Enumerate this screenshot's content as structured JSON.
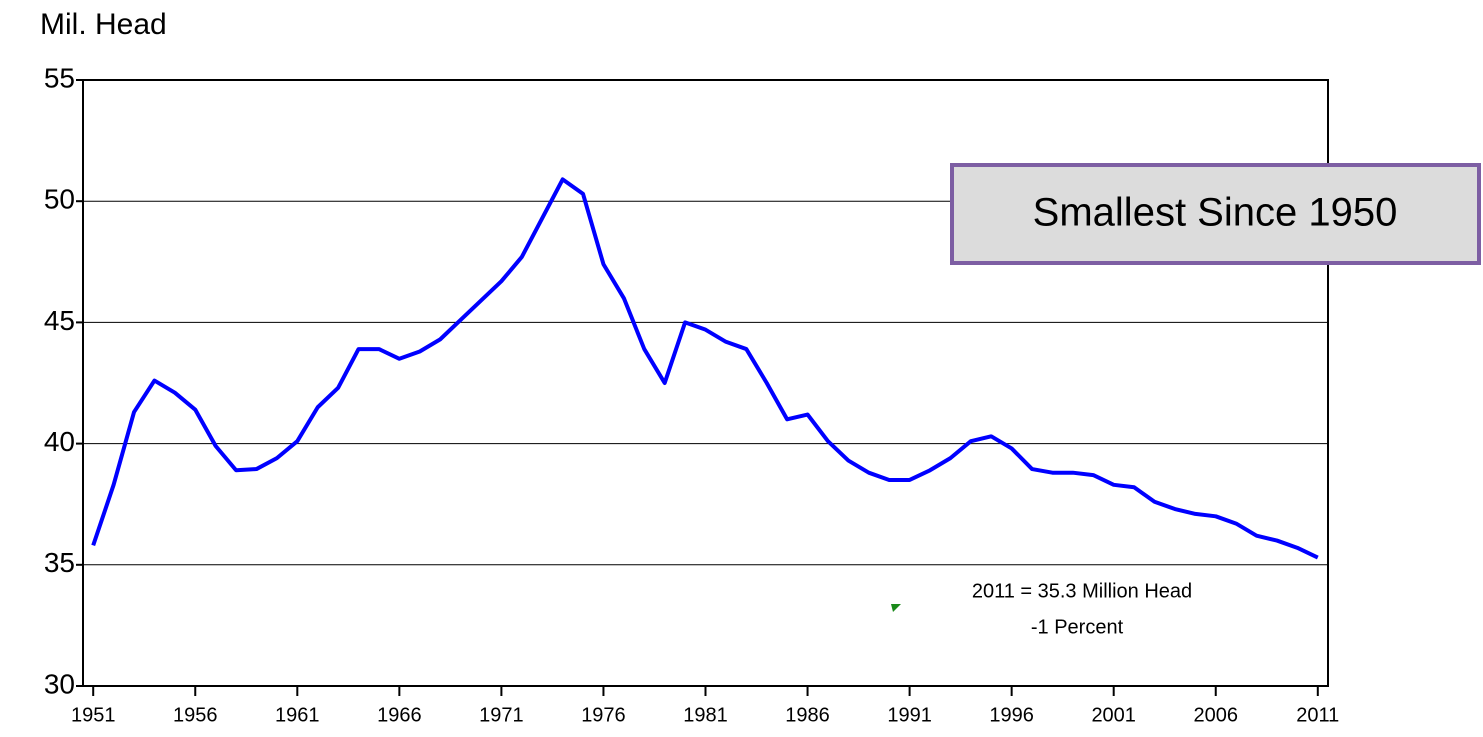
{
  "chart_data": {
    "type": "line",
    "y_label": "Mil. Head",
    "x": [
      1951,
      1952,
      1953,
      1954,
      1955,
      1956,
      1957,
      1958,
      1959,
      1960,
      1961,
      1962,
      1963,
      1964,
      1965,
      1966,
      1967,
      1968,
      1969,
      1970,
      1971,
      1972,
      1973,
      1974,
      1975,
      1976,
      1977,
      1978,
      1979,
      1980,
      1981,
      1982,
      1983,
      1984,
      1985,
      1986,
      1987,
      1988,
      1989,
      1990,
      1991,
      1992,
      1993,
      1994,
      1995,
      1996,
      1997,
      1998,
      1999,
      2000,
      2001,
      2002,
      2003,
      2004,
      2005,
      2006,
      2007,
      2008,
      2009,
      2010,
      2011
    ],
    "series": [
      {
        "color": "#0000ff",
        "values": [
          35.8,
          38.3,
          41.3,
          42.6,
          42.1,
          41.4,
          39.9,
          38.9,
          38.95,
          39.4,
          40.1,
          41.5,
          42.3,
          43.9,
          43.9,
          43.5,
          43.8,
          44.3,
          45.1,
          45.9,
          46.7,
          47.7,
          49.3,
          50.9,
          50.3,
          47.4,
          46.0,
          43.9,
          42.5,
          45.0,
          44.7,
          44.2,
          43.9,
          42.5,
          41.0,
          41.2,
          40.1,
          39.3,
          38.8,
          38.5,
          38.5,
          38.9,
          39.4,
          40.1,
          40.3,
          39.8,
          38.95,
          38.8,
          38.8,
          38.7,
          38.3,
          38.2,
          37.6,
          37.3,
          37.1,
          37.0,
          36.7,
          36.2,
          36.0,
          35.7,
          35.3
        ]
      }
    ],
    "xlim": [
      1950.5,
      2011.5
    ],
    "xticks": [
      1951,
      1956,
      1961,
      1966,
      1971,
      1976,
      1981,
      1986,
      1991,
      1996,
      2001,
      2006,
      2011
    ],
    "ylim": [
      30,
      55
    ],
    "yticks": [
      30,
      35,
      40,
      45,
      50,
      55
    ],
    "grid": true,
    "annotations": [
      "Smallest Since 1950",
      "2011 = 35.3 Million Head",
      "-1 Percent"
    ]
  }
}
